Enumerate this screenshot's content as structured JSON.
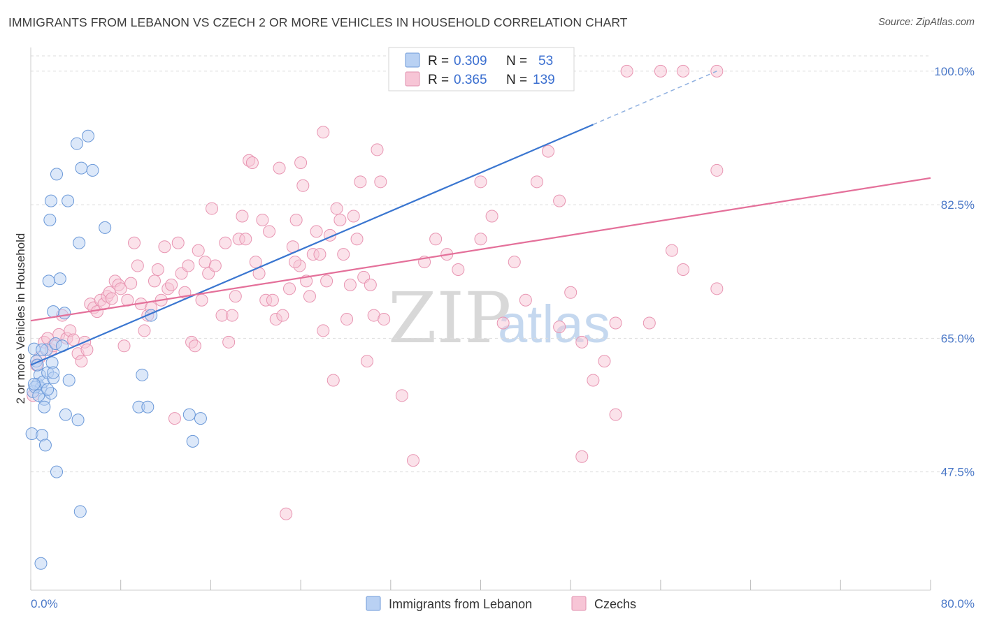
{
  "title": "IMMIGRANTS FROM LEBANON VS CZECH 2 OR MORE VEHICLES IN HOUSEHOLD CORRELATION CHART",
  "source": "Source: ZipAtlas.com",
  "watermark": {
    "zip": "ZIP",
    "atlas": "atlas"
  },
  "colors": {
    "blue": "#3a76d0",
    "pink": "#e4709a",
    "blue_fill": "#b9d1f3",
    "pink_fill": "#f7c5d6"
  },
  "stats": [
    {
      "r_label": "R = ",
      "r": "0.309",
      "n_label": "N = ",
      "n": "53"
    },
    {
      "r_label": "R = ",
      "r": "0.365",
      "n_label": "N = ",
      "n": "139"
    }
  ],
  "chart_data": {
    "type": "scatter",
    "xlabel": "",
    "ylabel": "2 or more Vehicles in Household",
    "xlim": [
      0,
      80
    ],
    "ylim": [
      32,
      102
    ],
    "x_tick_labels": [
      "0.0%",
      "80.0%"
    ],
    "y_ticks": [
      47.5,
      65.0,
      82.5,
      100.0
    ],
    "y_tick_labels": [
      "47.5%",
      "65.0%",
      "82.5%",
      "100.0%"
    ],
    "grid": true,
    "legend_position": "bottom",
    "series": [
      {
        "name": "Immigrants from Lebanon",
        "color": "#3a76d0",
        "trend": {
          "x0": 0,
          "y0": 61.5,
          "x1": 50,
          "y1": 93.0,
          "dashed_to_x": 61,
          "dashed_to_y": 100.0
        },
        "points": [
          [
            0.1,
            52.5
          ],
          [
            0.3,
            63.6
          ],
          [
            0.5,
            62.0
          ],
          [
            0.6,
            59.0
          ],
          [
            0.8,
            60.2
          ],
          [
            0.9,
            58.5
          ],
          [
            1.0,
            52.3
          ],
          [
            1.1,
            59.3
          ],
          [
            1.2,
            57.0
          ],
          [
            1.3,
            51.0
          ],
          [
            1.4,
            63.5
          ],
          [
            1.5,
            60.5
          ],
          [
            1.6,
            72.5
          ],
          [
            1.7,
            80.5
          ],
          [
            1.8,
            83.0
          ],
          [
            1.8,
            57.8
          ],
          [
            1.9,
            61.8
          ],
          [
            2.0,
            59.8
          ],
          [
            2.0,
            68.5
          ],
          [
            2.2,
            64.3
          ],
          [
            2.3,
            86.5
          ],
          [
            2.3,
            47.5
          ],
          [
            2.6,
            72.8
          ],
          [
            2.8,
            64.0
          ],
          [
            3.0,
            68.3
          ],
          [
            3.1,
            55.0
          ],
          [
            3.3,
            83.0
          ],
          [
            3.4,
            59.5
          ],
          [
            4.1,
            90.5
          ],
          [
            4.2,
            54.3
          ],
          [
            4.3,
            77.5
          ],
          [
            4.4,
            42.3
          ],
          [
            4.5,
            87.3
          ],
          [
            5.1,
            91.5
          ],
          [
            5.5,
            87.0
          ],
          [
            6.6,
            79.5
          ],
          [
            10.7,
            68.0
          ],
          [
            9.6,
            56.0
          ],
          [
            9.9,
            60.2
          ],
          [
            10.4,
            56.0
          ],
          [
            14.1,
            55.0
          ],
          [
            14.4,
            51.5
          ],
          [
            15.1,
            54.5
          ],
          [
            0.9,
            35.5
          ],
          [
            0.2,
            58.0
          ],
          [
            0.4,
            58.6
          ],
          [
            1.0,
            63.5
          ],
          [
            0.6,
            61.5
          ],
          [
            0.3,
            59.0
          ],
          [
            2.0,
            60.5
          ],
          [
            1.2,
            56.0
          ],
          [
            0.7,
            57.5
          ],
          [
            1.5,
            58.3
          ]
        ]
      },
      {
        "name": "Czechs",
        "color": "#e4709a",
        "trend": {
          "x0": 0,
          "y0": 67.3,
          "x1": 80,
          "y1": 86.0
        },
        "points": [
          [
            0.2,
            57.5
          ],
          [
            0.5,
            61.5
          ],
          [
            0.8,
            62.5
          ],
          [
            1.2,
            64.5
          ],
          [
            1.5,
            65.0
          ],
          [
            1.8,
            63.5
          ],
          [
            2.0,
            64.0
          ],
          [
            2.5,
            65.5
          ],
          [
            2.8,
            68.0
          ],
          [
            3.2,
            65.0
          ],
          [
            3.5,
            66.0
          ],
          [
            3.8,
            64.8
          ],
          [
            4.2,
            63.0
          ],
          [
            4.5,
            62.0
          ],
          [
            4.8,
            64.5
          ],
          [
            5.0,
            63.5
          ],
          [
            5.3,
            69.5
          ],
          [
            5.6,
            69.0
          ],
          [
            5.9,
            68.5
          ],
          [
            6.2,
            70.0
          ],
          [
            6.5,
            69.5
          ],
          [
            6.8,
            70.5
          ],
          [
            7.0,
            71.0
          ],
          [
            7.2,
            70.2
          ],
          [
            7.5,
            72.5
          ],
          [
            7.8,
            72.0
          ],
          [
            8.0,
            71.5
          ],
          [
            8.3,
            64.0
          ],
          [
            8.6,
            70.0
          ],
          [
            8.9,
            72.2
          ],
          [
            9.2,
            77.5
          ],
          [
            9.5,
            74.5
          ],
          [
            9.8,
            69.5
          ],
          [
            10.1,
            66.0
          ],
          [
            10.4,
            68.0
          ],
          [
            10.7,
            69.0
          ],
          [
            11.0,
            72.5
          ],
          [
            11.3,
            74.0
          ],
          [
            11.6,
            70.0
          ],
          [
            11.9,
            77.0
          ],
          [
            12.2,
            71.5
          ],
          [
            12.5,
            72.0
          ],
          [
            12.8,
            54.5
          ],
          [
            13.1,
            77.5
          ],
          [
            13.4,
            73.5
          ],
          [
            13.7,
            71.0
          ],
          [
            14.0,
            74.5
          ],
          [
            14.3,
            64.5
          ],
          [
            14.6,
            64.0
          ],
          [
            14.9,
            76.5
          ],
          [
            15.2,
            70.0
          ],
          [
            15.5,
            75.0
          ],
          [
            15.8,
            73.5
          ],
          [
            16.1,
            82.0
          ],
          [
            16.4,
            74.5
          ],
          [
            17.0,
            68.0
          ],
          [
            17.3,
            77.5
          ],
          [
            17.6,
            64.5
          ],
          [
            17.9,
            68.0
          ],
          [
            18.2,
            70.5
          ],
          [
            18.5,
            78.0
          ],
          [
            18.8,
            81.0
          ],
          [
            19.1,
            78.0
          ],
          [
            19.4,
            88.3
          ],
          [
            19.7,
            88.0
          ],
          [
            20.0,
            75.0
          ],
          [
            20.3,
            73.5
          ],
          [
            20.6,
            80.5
          ],
          [
            20.9,
            70.0
          ],
          [
            21.2,
            79.0
          ],
          [
            21.5,
            70.0
          ],
          [
            21.8,
            67.5
          ],
          [
            22.1,
            87.3
          ],
          [
            22.4,
            68.0
          ],
          [
            22.7,
            42.0
          ],
          [
            23.0,
            71.5
          ],
          [
            23.3,
            77.0
          ],
          [
            23.6,
            80.5
          ],
          [
            23.9,
            74.5
          ],
          [
            24.2,
            85.0
          ],
          [
            24.5,
            72.5
          ],
          [
            24.8,
            70.5
          ],
          [
            25.1,
            76.0
          ],
          [
            25.4,
            79.0
          ],
          [
            25.7,
            76.0
          ],
          [
            26.0,
            66.0
          ],
          [
            26.3,
            72.5
          ],
          [
            26.6,
            78.5
          ],
          [
            26.9,
            59.5
          ],
          [
            27.2,
            82.0
          ],
          [
            27.5,
            80.5
          ],
          [
            27.8,
            76.0
          ],
          [
            28.1,
            67.5
          ],
          [
            28.4,
            72.0
          ],
          [
            28.7,
            81.0
          ],
          [
            29.0,
            78.0
          ],
          [
            29.3,
            85.5
          ],
          [
            29.6,
            73.0
          ],
          [
            29.9,
            62.0
          ],
          [
            30.2,
            72.0
          ],
          [
            30.5,
            68.0
          ],
          [
            30.8,
            89.7
          ],
          [
            31.1,
            85.5
          ],
          [
            31.4,
            67.5
          ],
          [
            33.0,
            57.5
          ],
          [
            34.0,
            49.0
          ],
          [
            35.0,
            75.0
          ],
          [
            37.0,
            76.0
          ],
          [
            38.0,
            74.0
          ],
          [
            40.0,
            85.5
          ],
          [
            41.0,
            81.0
          ],
          [
            42.0,
            67.0
          ],
          [
            43.0,
            75.0
          ],
          [
            44.0,
            70.0
          ],
          [
            45.0,
            85.5
          ],
          [
            46.0,
            89.5
          ],
          [
            47.0,
            83.0
          ],
          [
            48.0,
            71.0
          ],
          [
            49.0,
            64.5
          ],
          [
            50.0,
            59.5
          ],
          [
            51.0,
            62.0
          ],
          [
            52.0,
            55.0
          ],
          [
            53.0,
            100.0
          ],
          [
            56.0,
            100.0
          ],
          [
            58.0,
            100.0
          ],
          [
            61.0,
            100.0
          ],
          [
            52.0,
            67.0
          ],
          [
            55.0,
            67.0
          ],
          [
            57.0,
            76.5
          ],
          [
            58.0,
            74.0
          ],
          [
            61.0,
            87.0
          ],
          [
            61.0,
            71.5
          ],
          [
            47.0,
            66.5
          ],
          [
            49.0,
            49.5
          ],
          [
            36.0,
            78.0
          ],
          [
            40.0,
            78.0
          ],
          [
            23.5,
            75.0
          ],
          [
            24.0,
            88.0
          ],
          [
            26.0,
            92.0
          ]
        ]
      }
    ]
  }
}
